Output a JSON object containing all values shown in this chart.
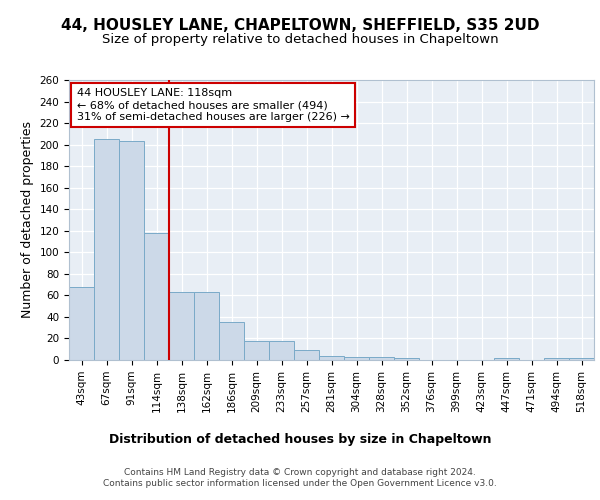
{
  "title": "44, HOUSLEY LANE, CHAPELTOWN, SHEFFIELD, S35 2UD",
  "subtitle": "Size of property relative to detached houses in Chapeltown",
  "xlabel": "Distribution of detached houses by size in Chapeltown",
  "ylabel": "Number of detached properties",
  "categories": [
    "43sqm",
    "67sqm",
    "91sqm",
    "114sqm",
    "138sqm",
    "162sqm",
    "186sqm",
    "209sqm",
    "233sqm",
    "257sqm",
    "281sqm",
    "304sqm",
    "328sqm",
    "352sqm",
    "376sqm",
    "399sqm",
    "423sqm",
    "447sqm",
    "471sqm",
    "494sqm",
    "518sqm"
  ],
  "values": [
    68,
    205,
    203,
    118,
    63,
    63,
    35,
    18,
    18,
    9,
    4,
    3,
    3,
    2,
    0,
    0,
    0,
    2,
    0,
    2,
    2
  ],
  "bar_color": "#ccd9e8",
  "bar_edge_color": "#7aaac8",
  "red_line_index": 3,
  "annotation_text": "44 HOUSLEY LANE: 118sqm\n← 68% of detached houses are smaller (494)\n31% of semi-detached houses are larger (226) →",
  "annotation_box_color": "#ffffff",
  "annotation_box_edge_color": "#cc0000",
  "background_color": "#e8eef5",
  "grid_color": "#ffffff",
  "fig_background": "#ffffff",
  "title_fontsize": 11,
  "subtitle_fontsize": 9.5,
  "axis_label_fontsize": 9,
  "tick_fontsize": 7.5,
  "annotation_fontsize": 8,
  "footer_text": "Contains HM Land Registry data © Crown copyright and database right 2024.\nContains public sector information licensed under the Open Government Licence v3.0.",
  "ylim": [
    0,
    260
  ],
  "yticks": [
    0,
    20,
    40,
    60,
    80,
    100,
    120,
    140,
    160,
    180,
    200,
    220,
    240,
    260
  ]
}
